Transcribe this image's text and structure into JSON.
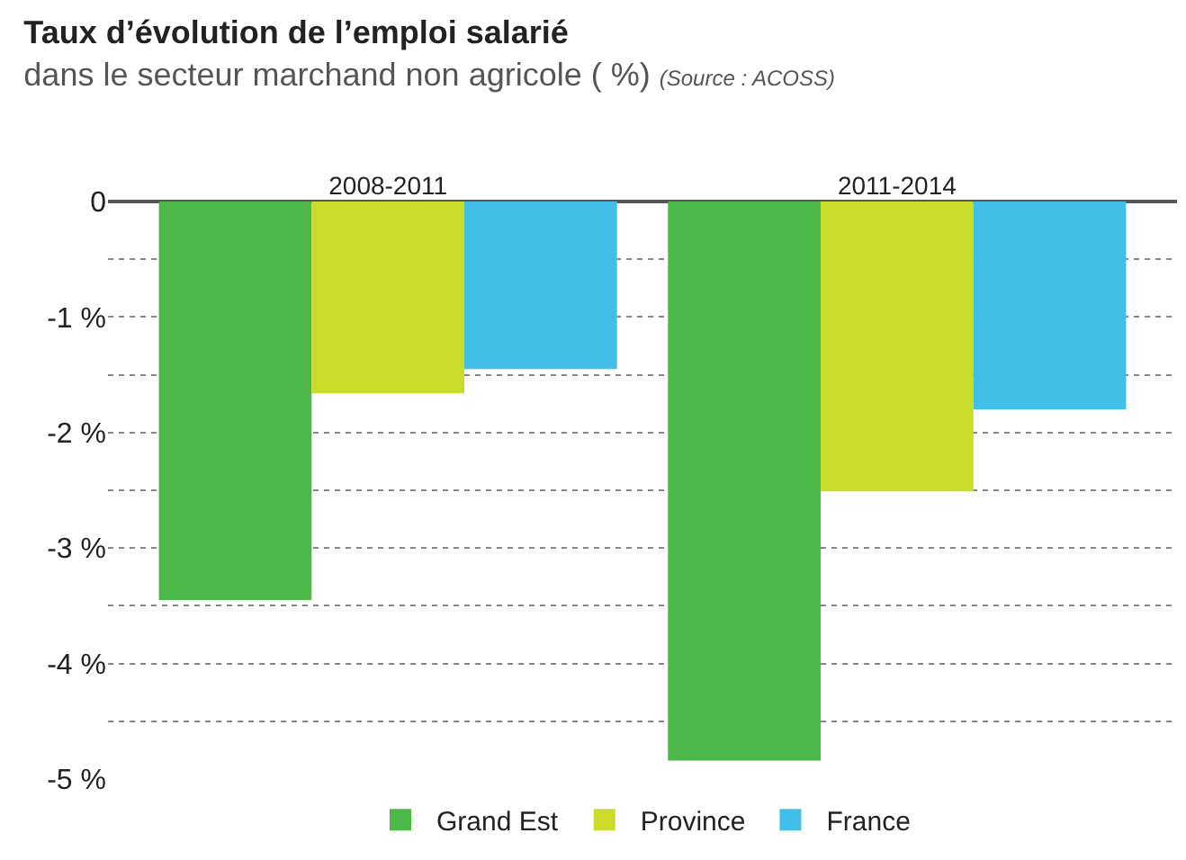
{
  "chart_data": {
    "type": "bar",
    "title": "Taux d’évolution de l’emploi salarié",
    "subtitle": "dans le secteur marchand non agricole ( %)",
    "annotations": [
      "(Source : ACOSS)"
    ],
    "categories": [
      "2008-2011",
      "2011-2014"
    ],
    "series": [
      {
        "name": "Grand Est",
        "color": "#4cb848",
        "values": [
          -3.45,
          -4.84
        ]
      },
      {
        "name": "Province",
        "color": "#cadc2a",
        "values": [
          -1.66,
          -2.51
        ]
      },
      {
        "name": "France",
        "color": "#41bfe8",
        "values": [
          -1.45,
          -1.8
        ]
      }
    ],
    "ylim": [
      -5,
      0
    ],
    "yticks": [
      0,
      {
        "value": -0.5,
        "label": null
      },
      {
        "value": -1,
        "label": "-1 %"
      },
      {
        "value": -1.5,
        "label": null
      },
      {
        "value": -2,
        "label": "-2 %"
      },
      {
        "value": -2.5,
        "label": null
      },
      {
        "value": -3,
        "label": "-3 %"
      },
      {
        "value": -3.5,
        "label": null
      },
      {
        "value": -4,
        "label": "-4 %"
      },
      {
        "value": -4.5,
        "label": null
      },
      {
        "value": -5,
        "label": "-5 %"
      }
    ],
    "grid": "y",
    "legend": "bottom"
  }
}
